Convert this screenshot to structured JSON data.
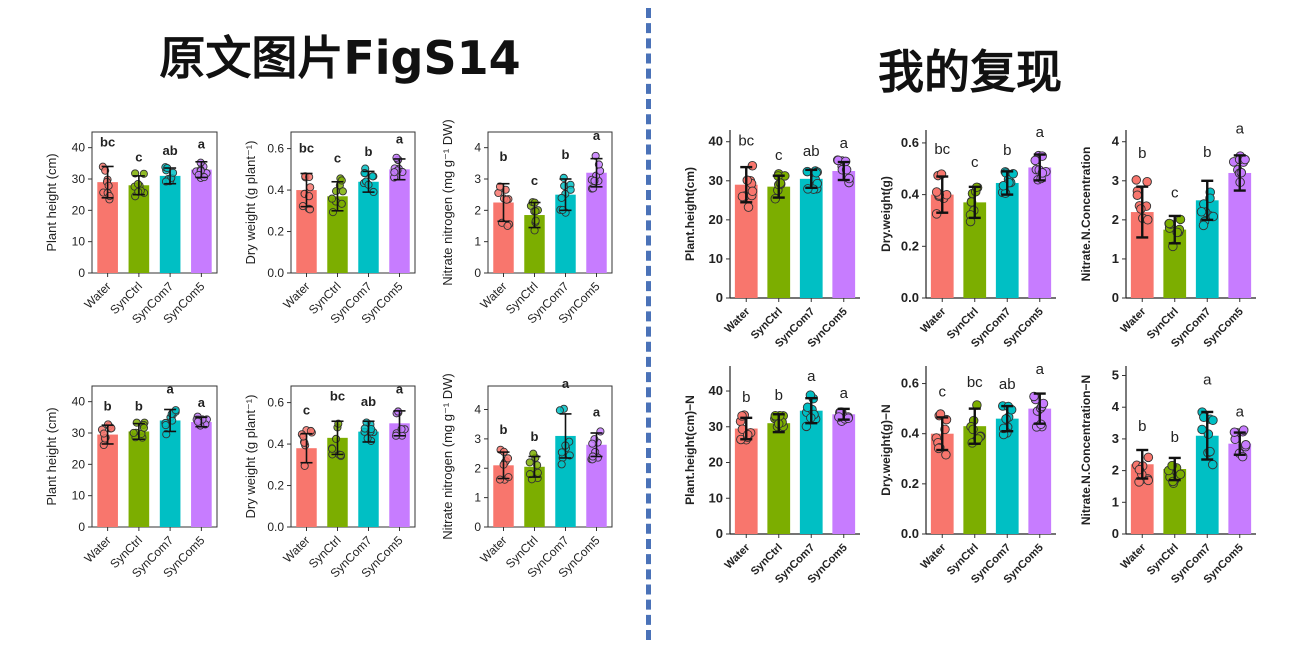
{
  "left_heading": "原文图片FigS14",
  "right_heading": "我的复现",
  "colors": {
    "Water": "#f8766d",
    "SynCtrl": "#7cae00",
    "SynCom7": "#00bfc4",
    "SynCom5": "#c77cff",
    "divider": "#4a72b8"
  },
  "chart_data": [
    {
      "id": "orig-height-top",
      "type": "bar",
      "style": "original",
      "ylabel": "Plant height (cm)",
      "categories": [
        "Water",
        "SynCtrl",
        "SynCom7",
        "SynCom5"
      ],
      "values": [
        29,
        28,
        31,
        33
      ],
      "errors": [
        5,
        3,
        2.5,
        2.5
      ],
      "letters": [
        "bc",
        "c",
        "ab",
        "a"
      ],
      "yticks": [
        "0",
        "10",
        "20",
        "30",
        "40"
      ],
      "ylim": [
        0,
        45
      ]
    },
    {
      "id": "orig-dry-top",
      "type": "bar",
      "style": "original",
      "ylabel": "Dry weight (g plant⁻¹)",
      "categories": [
        "Water",
        "SynCtrl",
        "SynCom7",
        "SynCom5"
      ],
      "values": [
        0.4,
        0.37,
        0.44,
        0.5
      ],
      "errors": [
        0.08,
        0.07,
        0.05,
        0.05
      ],
      "letters": [
        "bc",
        "c",
        "b",
        "a"
      ],
      "yticks": [
        "0.0",
        "0.2",
        "0.4",
        "0.6"
      ],
      "ylim": [
        0,
        0.68
      ]
    },
    {
      "id": "orig-nitrate-top",
      "type": "bar",
      "style": "original",
      "ylabel": "Nitrate nitrogen (mg g⁻¹ DW)",
      "categories": [
        "Water",
        "SynCtrl",
        "SynCom7",
        "SynCom5"
      ],
      "values": [
        2.25,
        1.85,
        2.5,
        3.2
      ],
      "errors": [
        0.6,
        0.4,
        0.5,
        0.45
      ],
      "letters": [
        "b",
        "c",
        "b",
        "a"
      ],
      "yticks": [
        "0",
        "1",
        "2",
        "3",
        "4"
      ],
      "ylim": [
        0,
        4.5
      ]
    },
    {
      "id": "orig-height-bottom",
      "type": "bar",
      "style": "original",
      "ylabel": "Plant height (cm)",
      "categories": [
        "Water",
        "SynCtrl",
        "SynCom7",
        "SynCom5"
      ],
      "values": [
        29.5,
        30.5,
        34,
        33.5
      ],
      "errors": [
        3,
        2.5,
        3.5,
        1.5
      ],
      "letters": [
        "b",
        "b",
        "a",
        "a"
      ],
      "yticks": [
        "0",
        "10",
        "20",
        "30",
        "40"
      ],
      "ylim": [
        0,
        45
      ]
    },
    {
      "id": "orig-dry-bottom",
      "type": "bar",
      "style": "original",
      "ylabel": "Dry weight (g plant⁻¹)",
      "categories": [
        "Water",
        "SynCtrl",
        "SynCom7",
        "SynCom5"
      ],
      "values": [
        0.38,
        0.43,
        0.46,
        0.5
      ],
      "errors": [
        0.07,
        0.08,
        0.05,
        0.06
      ],
      "letters": [
        "c",
        "bc",
        "ab",
        "a"
      ],
      "yticks": [
        "0.0",
        "0.2",
        "0.4",
        "0.6"
      ],
      "ylim": [
        0,
        0.68
      ]
    },
    {
      "id": "orig-nitrate-bottom",
      "type": "bar",
      "style": "original",
      "ylabel": "Nitrate nitrogen (mg g⁻¹ DW)",
      "categories": [
        "Water",
        "SynCtrl",
        "SynCom7",
        "SynCom5"
      ],
      "values": [
        2.1,
        2.05,
        3.1,
        2.8
      ],
      "errors": [
        0.45,
        0.35,
        0.75,
        0.4
      ],
      "letters": [
        "b",
        "b",
        "a",
        "a"
      ],
      "yticks": [
        "0",
        "1",
        "2",
        "3",
        "4"
      ],
      "ylim": [
        0,
        4.8
      ]
    },
    {
      "id": "repro-height-top",
      "type": "bar",
      "style": "repro",
      "ylabel": "Plant.height(cm)",
      "categories": [
        "Water",
        "SynCtrl",
        "SynCom7",
        "SynCom5"
      ],
      "values": [
        29,
        28.5,
        30.5,
        32.5
      ],
      "errors": [
        4.5,
        2.8,
        2.3,
        2.3
      ],
      "letters": [
        "bc",
        "c",
        "ab",
        "a"
      ],
      "yticks": [
        "0",
        "10",
        "20",
        "30",
        "40"
      ],
      "ylim": [
        0,
        43
      ]
    },
    {
      "id": "repro-dry-top",
      "type": "bar",
      "style": "repro",
      "ylabel": "Dry.weight(g)",
      "categories": [
        "Water",
        "SynCtrl",
        "SynCom7",
        "SynCom5"
      ],
      "values": [
        0.4,
        0.37,
        0.445,
        0.505
      ],
      "errors": [
        0.07,
        0.06,
        0.045,
        0.05
      ],
      "letters": [
        "bc",
        "c",
        "b",
        "a"
      ],
      "yticks": [
        "0.0",
        "0.2",
        "0.4",
        "0.6"
      ],
      "ylim": [
        0,
        0.65
      ]
    },
    {
      "id": "repro-nitrate-top",
      "type": "bar",
      "style": "repro",
      "ylabel": "Nitrate.N.Concentration",
      "categories": [
        "Water",
        "SynCtrl",
        "SynCom7",
        "SynCom5"
      ],
      "values": [
        2.2,
        1.75,
        2.5,
        3.2
      ],
      "errors": [
        0.65,
        0.35,
        0.5,
        0.45
      ],
      "letters": [
        "b",
        "c",
        "b",
        "a"
      ],
      "yticks": [
        "0",
        "1",
        "2",
        "3",
        "4"
      ],
      "ylim": [
        0,
        4.3
      ]
    },
    {
      "id": "repro-height-bottom",
      "type": "bar",
      "style": "repro",
      "ylabel": "Plant.height(cm)−N",
      "categories": [
        "Water",
        "SynCtrl",
        "SynCom7",
        "SynCom5"
      ],
      "values": [
        29.5,
        31,
        34.5,
        33.5
      ],
      "errors": [
        3,
        2.5,
        3.5,
        1.5
      ],
      "letters": [
        "b",
        "b",
        "a",
        "a"
      ],
      "yticks": [
        "0",
        "10",
        "20",
        "30",
        "40"
      ],
      "ylim": [
        0,
        47
      ]
    },
    {
      "id": "repro-dry-bottom",
      "type": "bar",
      "style": "repro",
      "ylabel": "Dry.weight(g)−N",
      "categories": [
        "Water",
        "SynCtrl",
        "SynCom7",
        "SynCom5"
      ],
      "values": [
        0.4,
        0.43,
        0.46,
        0.5
      ],
      "errors": [
        0.065,
        0.07,
        0.05,
        0.06
      ],
      "letters": [
        "c",
        "bc",
        "ab",
        "a"
      ],
      "yticks": [
        "0.0",
        "0.2",
        "0.4",
        "0.6"
      ],
      "ylim": [
        0,
        0.67
      ]
    },
    {
      "id": "repro-nitrate-bottom",
      "type": "bar",
      "style": "repro",
      "ylabel": "Nitrate.N.Concentration−N",
      "categories": [
        "Water",
        "SynCtrl",
        "SynCom7",
        "SynCom5"
      ],
      "values": [
        2.2,
        2.05,
        3.1,
        2.85
      ],
      "errors": [
        0.45,
        0.35,
        0.75,
        0.35
      ],
      "letters": [
        "b",
        "b",
        "a",
        "a"
      ],
      "yticks": [
        "0",
        "1",
        "2",
        "3",
        "4",
        "5"
      ],
      "ylim": [
        0,
        5.3
      ]
    }
  ]
}
